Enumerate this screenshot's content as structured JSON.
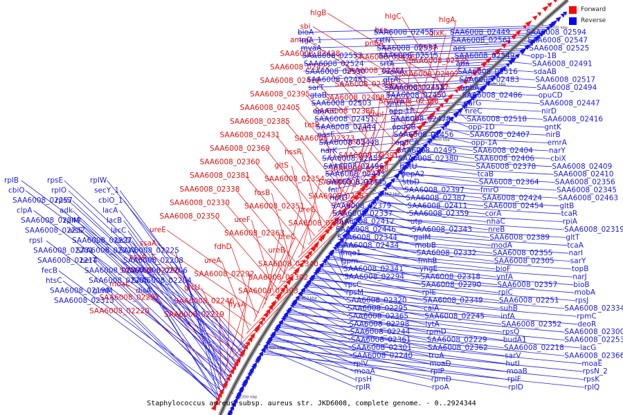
{
  "legend": {
    "forward_label": "Forward",
    "reverse_label": "Reverse",
    "forward_color": "#ff0000",
    "reverse_color": "#0000ff"
  },
  "caption": "Staphylococcus aureus subsp. aureus str. JKD6008, complete genome. - 0..2924344",
  "ruler_ticks": [
    "2350 kbp",
    "2400 kbp",
    "2450 kbp",
    "2500 kbp",
    "2550 kbp",
    "2600 kbp",
    "2650 kbp",
    "2700 kbp"
  ],
  "forward_genes": [
    "hlgB",
    "hlgC",
    "hlgA",
    "sbi",
    "bcr",
    "glxK",
    "ampC",
    "pnbA",
    "fmhA",
    "SAA6008_02428",
    "SAA6008_02426",
    "SAA6008_02425",
    "SAA6008_02422",
    "SAA6008_02421",
    "SAA6008_02402",
    "SAA6008_02419",
    "SAA6008_02396",
    "SAA6008_02417",
    "SAA6008_02395",
    "SAA6008_02408",
    "SAA6008_02388",
    "SAA6008_02405",
    "SAA6008_02386",
    "cobI",
    "SAA6008_02385",
    "tetR",
    "lytT",
    "SAA6008_02431",
    "SAA6008_02373",
    "hssS",
    "SAA6008_02369",
    "hssR",
    "SAA6008_02391",
    "SAA6008_02360",
    "gltS",
    "SAA6008_02358",
    "SAA6008_02381",
    "SAA6008_02354",
    "SAA6008_02375",
    "SAA6008_02338",
    "fosB",
    "SAA6008_02353",
    "SAA6008_02330",
    "SAA6008_02351",
    "ureG",
    "SAA6008_02350",
    "ureF",
    "SAA6008_02347",
    "ureE",
    "SAA6008_02363",
    "ureC",
    "ssaA",
    "fdhD",
    "ureB",
    "ssaA_1",
    "ureA",
    "SAA6008_02340",
    "SAA6008_02296",
    "SAA6008_02292",
    "SAA6008_02302",
    "moaC",
    "glcU",
    "SAA6008_02303",
    "SAA6008_02297",
    "SAA6008_02246",
    "hysA",
    "SAA6008_02220",
    "SAA6008_02219"
  ],
  "reverse_genes": [
    "bioA",
    "SAA6008_02455",
    "SAA6008_02449",
    "SAA6008_02594",
    "lrgA_1",
    "crtN",
    "SAA6008_02561",
    "SAA6008_02547",
    "mvaA",
    "SAA6008_02537",
    "aes",
    "SAA6008_02525",
    "SAA6008_02557",
    "SAA6008_02515",
    "SAA6008_02549",
    "opp-1B",
    "SAA6008_02524",
    "srtA",
    "ada",
    "SAA6008_02491",
    "SAA6008_02530",
    "sdaAA",
    "SAA6008_02516",
    "sdaAB",
    "SAA6008_02481",
    "gtrA",
    "SAA6008_02483",
    "SAA6008_02517",
    "sarT",
    "SAA6008_02458",
    "apbA",
    "SAA6008_02494",
    "gtaB",
    "SAA6008_02450",
    "SAA6008_02486",
    "opuCD",
    "SAA6008_02503",
    "gntP",
    "narG",
    "SAA6008_02447",
    "opuCC",
    "opp-1F",
    "nreC",
    "nirD",
    "SAA6008_02451",
    "SAA6008_02478",
    "SAA6008_02518",
    "SAA6008_02416",
    "SAA6008_02444",
    "opuCB",
    "opp-1D",
    "gntK",
    "nasF",
    "SAA6008_02456",
    "SAA6008_02407",
    "nirB",
    "SAA6008_02448",
    "opuCA",
    "opp-1A",
    "emrA",
    "narK",
    "SAA6008_02495",
    "SAA6008_02404",
    "narY",
    "SAA6008_02453",
    "SAA6008_02380",
    "SAA6008_02406",
    "cbiX",
    "SAA6008_02496",
    "hutU",
    "SAA6008_02378",
    "SAA6008_02409",
    "SAA6008_02443",
    "pepA2",
    "tcaB",
    "SAA6008_02410",
    "SAA6008_02445",
    "stbD",
    "SAA6008_02364",
    "SAA6008_02356",
    "fni",
    "SAA6008_02397",
    "fmrO",
    "SAA6008_02345",
    "hutG",
    "SAA6008_02387",
    "SAA6008_02424",
    "SAA6008_02463",
    "SAA6008_02379",
    "SAA6008_02411",
    "SAA6008_02454",
    "gltB",
    "SAA6008_02337",
    "SAA6008_02359",
    "corA",
    "tcaR",
    "SAA6008_02412",
    "utp",
    "nhaC",
    "rpiA",
    "SAA6008_02446",
    "SAA6008_02343",
    "nreB",
    "SAA6008_02319",
    "SAA6008_02344",
    "galM",
    "SAA6008_02389",
    "gltT",
    "SAA6008_02434",
    "mobB",
    "modA",
    "tcaA",
    "mqo1",
    "SAA6008_02332",
    "SAA6008_02355",
    "narI",
    "gpm",
    "fmhB",
    "SAA6008_02305",
    "sarY",
    "SAA6008_02341",
    "yhgE",
    "bioF",
    "topB",
    "SAA6008_02294",
    "SAA6008_02318",
    "ynfA",
    "narJ",
    "rpsC",
    "SAA6008_02290",
    "SAA6008_02357",
    "bioB",
    "rpsM",
    "rplE",
    "rplC",
    "mobA",
    "SAA6008_02320",
    "SAA6008_02349",
    "SAA6008_02251",
    "rpsJ",
    "SAA6008_02295",
    "caiA",
    "suhB",
    "SAA6008_02334",
    "SAA6008_02365",
    "SAA6008_02245",
    "infA",
    "rpmC",
    "SAA6008_02298",
    "lytA",
    "SAA6008_02352",
    "deoR",
    "SAA6008_02244",
    "rpmD",
    "rpsQ",
    "SAA6008_02300",
    "SAA6008_02361",
    "SAA6008_02229",
    "budA1",
    "SAA6008_02253",
    "SAA6008_02301",
    "SAA6008_02362",
    "SAA6008_02218",
    "lacG",
    "SAA6008_02240",
    "truA",
    "sarV",
    "SAA6008_02366",
    "rplV",
    "moaD",
    "hutI",
    "moaE",
    "moaA",
    "rplP",
    "moaB",
    "rpsN_2",
    "rpsH",
    "rpmD",
    "rplF",
    "rpsK",
    "rplR",
    "rpoA",
    "rplD",
    "rplQ",
    "rplB",
    "rpsE",
    "rplW",
    "cbiO",
    "rplO",
    "secY_1",
    "SAA6008_02257",
    "rpsS",
    "cbiO_1",
    "clpA",
    "adk",
    "lacA",
    "SAA6008_02249",
    "rplM",
    "lacB",
    "SAA6008_02232",
    "alsS",
    "lacC",
    "rpsI",
    "SAA6008_02227",
    "lacD",
    "SAA6008_02231",
    "SAA6008_02217",
    "SAA6008_02225",
    "SAA6008_02214",
    "betT",
    "SAA6008_02208",
    "fecB",
    "SAA6008_02207",
    "SAA6008_02206",
    "htsC",
    "SAA6008_02205",
    "SAA6008_02204",
    "SAA6008_02199",
    "glmM",
    "disA",
    "SAA6008_02313"
  ]
}
